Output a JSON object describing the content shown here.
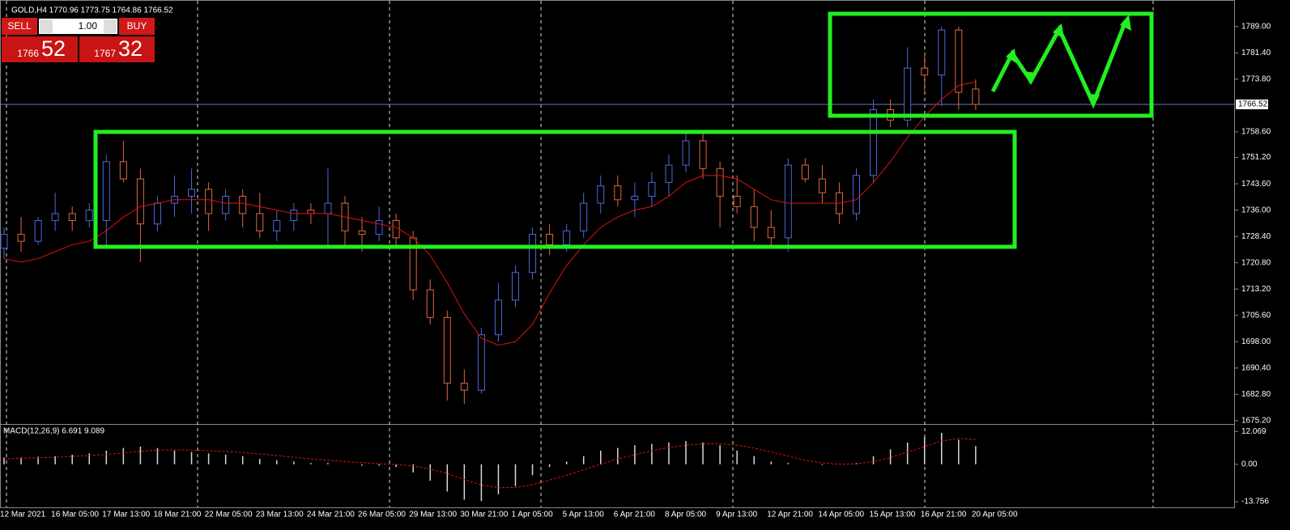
{
  "trade_panel": {
    "sell": "SELL",
    "buy": "BUY",
    "lot": "1.00",
    "bid_big": "1766",
    "bid_small": "52",
    "ask_big": "1767",
    "ask_small": "32"
  },
  "chart_data": [
    {
      "type": "candlestick",
      "title": "GOLD,H4 1770.96 1773.75 1764.86 1766.52",
      "up_color": "#4f67d8",
      "down_color": "#e0663f",
      "categories": [
        "12 Mar 2021",
        null,
        null,
        "16 Mar 05:00",
        null,
        null,
        "17 Mar 13:00",
        null,
        null,
        "18 Mar 21:00",
        null,
        null,
        "22 Mar 05:00",
        null,
        null,
        "23 Mar 13:00",
        null,
        null,
        "24 Mar 21:00",
        null,
        null,
        "26 Mar 05:00",
        null,
        null,
        "29 Mar 13:00",
        null,
        null,
        "30 Mar 21:00",
        null,
        null,
        "1 Apr 05:00",
        null,
        null,
        "5 Apr 13:00",
        null,
        null,
        "6 Apr 21:00",
        null,
        null,
        "8 Apr 05:00",
        null,
        null,
        "9 Apr 13:00",
        null,
        null,
        "12 Apr 21:00",
        null,
        null,
        "14 Apr 05:00",
        null,
        null,
        "15 Apr 13:00",
        null,
        null,
        "16 Apr 21:00",
        null,
        null,
        "20 Apr 05:00"
      ],
      "open": [
        1725,
        1729,
        1727,
        1733,
        1735,
        1733,
        1733,
        1750,
        1745,
        1732,
        1738,
        1740,
        1742,
        1735,
        1740,
        1735,
        1730,
        1733,
        1736,
        1735,
        1738,
        1730,
        1729,
        1733,
        1728,
        1713,
        1705,
        1686,
        1684,
        1700,
        1710,
        1718,
        1729,
        1726,
        1730,
        1738,
        1743,
        1739,
        1740,
        1744,
        1749,
        1756,
        1748,
        1740,
        1737,
        1731,
        1728,
        1749,
        1745,
        1741,
        1735,
        1746,
        1765,
        1762,
        1777,
        1775,
        1788,
        1770.96
      ],
      "high": [
        1731,
        1734,
        1734,
        1741,
        1737,
        1738,
        1752,
        1756,
        1748,
        1740,
        1746,
        1748,
        1744,
        1742,
        1742,
        1741,
        1736,
        1738,
        1738,
        1748,
        1740,
        1734,
        1737,
        1735,
        1730,
        1716,
        1707,
        1690,
        1702,
        1715,
        1720,
        1731,
        1732,
        1732,
        1741,
        1746,
        1746,
        1744,
        1747,
        1752,
        1759,
        1758,
        1750,
        1746,
        1742,
        1736,
        1751,
        1751,
        1749,
        1744,
        1748,
        1768,
        1768,
        1783,
        1781,
        1789,
        1789,
        1773.75
      ],
      "low": [
        1722,
        1724,
        1726,
        1730,
        1730,
        1731,
        1726,
        1744,
        1721,
        1730,
        1734,
        1735,
        1730,
        1733,
        1731,
        1728,
        1727,
        1730,
        1732,
        1726,
        1726,
        1724,
        1727,
        1726,
        1710,
        1703,
        1681,
        1680,
        1683,
        1698,
        1708,
        1716,
        1723,
        1724,
        1728,
        1735,
        1737,
        1734,
        1737,
        1740,
        1747,
        1745,
        1731,
        1735,
        1727,
        1725,
        1724,
        1744,
        1738,
        1732,
        1733,
        1744,
        1760,
        1760,
        1770,
        1766,
        1765,
        1764.86
      ],
      "close": [
        1729,
        1727,
        1733,
        1735,
        1733,
        1736,
        1750,
        1745,
        1732,
        1738,
        1740,
        1742,
        1735,
        1740,
        1735,
        1730,
        1733,
        1736,
        1735,
        1738,
        1730,
        1729,
        1733,
        1728,
        1713,
        1705,
        1686,
        1684,
        1700,
        1710,
        1718,
        1729,
        1726,
        1730,
        1738,
        1743,
        1739,
        1740,
        1744,
        1749,
        1756,
        1748,
        1740,
        1737,
        1731,
        1728,
        1749,
        1745,
        1741,
        1735,
        1746,
        1765,
        1762,
        1777,
        1775,
        1788,
        1770,
        1766.52
      ],
      "overlay": {
        "color": "#e01010",
        "values": [
          1722,
          1721,
          1722,
          1724,
          1726,
          1727,
          1730,
          1734,
          1737,
          1738,
          1739,
          1739,
          1739,
          1738,
          1738,
          1737,
          1736,
          1735,
          1735,
          1735,
          1734,
          1733,
          1732,
          1731,
          1728,
          1723,
          1715,
          1706,
          1699,
          1697,
          1698,
          1703,
          1712,
          1720,
          1726,
          1731,
          1734,
          1736,
          1737,
          1740,
          1744,
          1746,
          1746,
          1745,
          1742,
          1739,
          1738,
          1738,
          1738,
          1738,
          1739,
          1744,
          1750,
          1757,
          1763,
          1768,
          1772,
          1773
        ]
      },
      "last_price": 1766.52,
      "ylim": [
        1674.7,
        1795.5
      ],
      "yticks": [
        {
          "value": 1789,
          "label": "1789.00"
        },
        {
          "value": 1781.4,
          "label": "1781.40"
        },
        {
          "value": 1773.8,
          "label": "1773.80"
        },
        {
          "value": 1758.6,
          "label": "1758.60"
        },
        {
          "value": 1751.2,
          "label": "1751.20"
        },
        {
          "value": 1743.6,
          "label": "1743.60"
        },
        {
          "value": 1736,
          "label": "1736.00"
        },
        {
          "value": 1728.4,
          "label": "1728.40"
        },
        {
          "value": 1720.8,
          "label": "1720.80"
        },
        {
          "value": 1713.2,
          "label": "1713.20"
        },
        {
          "value": 1705.6,
          "label": "1705.60"
        },
        {
          "value": 1698,
          "label": "1698.00"
        },
        {
          "value": 1690.4,
          "label": "1690.40"
        },
        {
          "value": 1682.8,
          "label": "1682.80"
        },
        {
          "value": 1675.2,
          "label": "1675.20"
        }
      ]
    },
    {
      "type": "macd",
      "title": "MACD(12,26,9) 6.691 9.089",
      "histogram": {
        "color": "#d8d8d8",
        "values": [
          2.5,
          2.5,
          2.8,
          3,
          3.5,
          4,
          5,
          6,
          6.5,
          6,
          5,
          4.5,
          4,
          3.5,
          3,
          2,
          1.5,
          1,
          0.5,
          0.5,
          0,
          -0.5,
          -0.5,
          -1,
          -3,
          -6,
          -10,
          -13,
          -13.5,
          -11,
          -8,
          -4,
          -1,
          1,
          3,
          5,
          6,
          7,
          7.5,
          8,
          8.5,
          8,
          7,
          5,
          3,
          1,
          0.5,
          0,
          -0.3,
          0,
          0.5,
          3,
          5.5,
          8,
          10,
          11.5,
          9,
          6.691
        ]
      },
      "signal": {
        "color": "#e01010",
        "values": [
          2,
          2.2,
          2.4,
          2.6,
          2.9,
          3.2,
          3.6,
          4.2,
          4.8,
          5.2,
          5.3,
          5.2,
          5,
          4.7,
          4.3,
          3.8,
          3.2,
          2.6,
          2,
          1.5,
          1,
          0.6,
          0.2,
          -0.1,
          -0.6,
          -1.7,
          -3.4,
          -5.6,
          -7.6,
          -8.6,
          -8.5,
          -7.5,
          -5.8,
          -4,
          -2,
          0,
          2,
          3.5,
          5,
          6.2,
          7,
          7.5,
          7.5,
          7,
          6,
          4.5,
          3,
          1.5,
          0.5,
          0,
          0.2,
          1,
          2.5,
          4.5,
          6.5,
          8.5,
          9.5,
          9.089
        ]
      },
      "ylim": [
        -16.1,
        13.9
      ],
      "yticks": [
        12.069,
        {
          "value": 0,
          "label": "0.00"
        },
        -13.756
      ]
    }
  ]
}
